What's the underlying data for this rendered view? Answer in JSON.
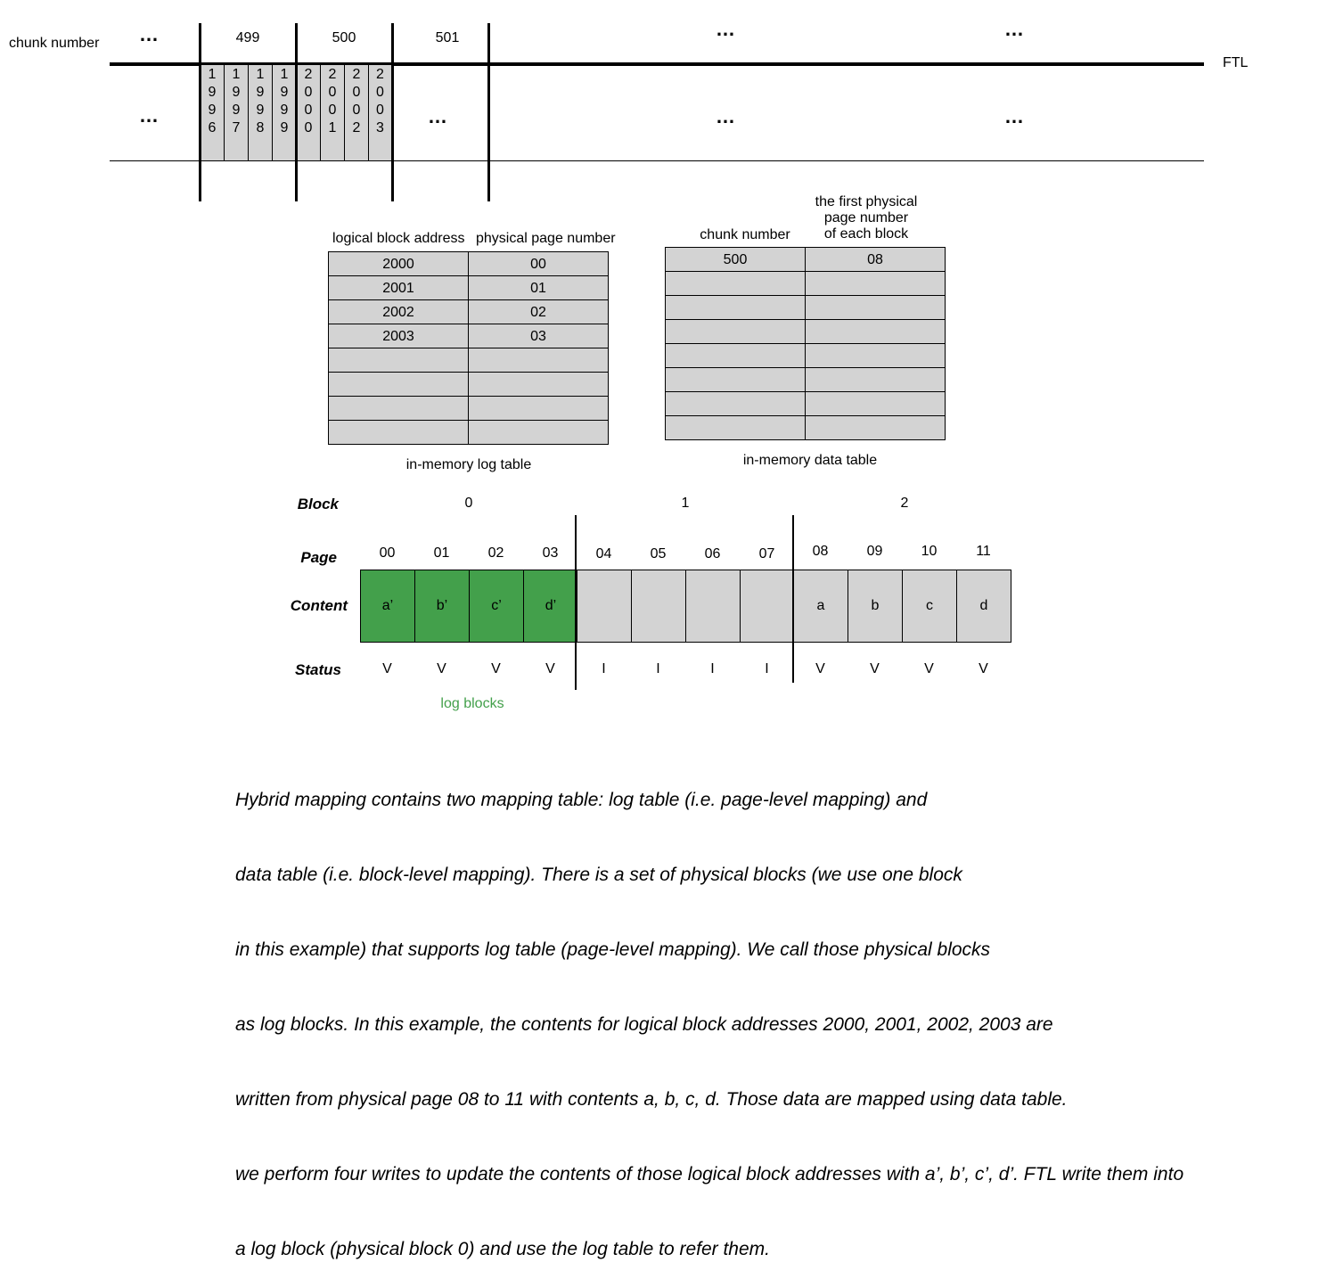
{
  "ftl": {
    "row_label": "chunk number",
    "ftl_label": "FTL",
    "ellipsis": "…",
    "chunks": [
      "499",
      "500",
      "501"
    ],
    "blocks_499": [
      "1\n9\n9\n6",
      "1\n9\n9\n7",
      "1\n9\n9\n8",
      "1\n9\n9\n9"
    ],
    "blocks_500": [
      "2\n0\n0\n0",
      "2\n0\n0\n1",
      "2\n0\n0\n2",
      "2\n0\n0\n3"
    ]
  },
  "log_table": {
    "col1": "logical block address",
    "col2": "physical page number",
    "rows": [
      [
        "2000",
        "00"
      ],
      [
        "2001",
        "01"
      ],
      [
        "2002",
        "02"
      ],
      [
        "2003",
        "03"
      ],
      [
        "",
        ""
      ],
      [
        "",
        ""
      ],
      [
        "",
        ""
      ],
      [
        "",
        ""
      ]
    ],
    "caption": "in-memory log table"
  },
  "data_table": {
    "col1": "chunk number",
    "col2_line1": "the first physical",
    "col2_line2": "page number",
    "col2_line3": "of each block",
    "rows": [
      [
        "500",
        "08"
      ],
      [
        "",
        ""
      ],
      [
        "",
        ""
      ],
      [
        "",
        ""
      ],
      [
        "",
        ""
      ],
      [
        "",
        ""
      ],
      [
        "",
        ""
      ],
      [
        "",
        ""
      ]
    ],
    "caption": "in-memory data table"
  },
  "flash": {
    "labels": {
      "block": "Block",
      "page": "Page",
      "content": "Content",
      "status": "Status"
    },
    "blocks": [
      "0",
      "1",
      "2"
    ],
    "pages": [
      "00",
      "01",
      "02",
      "03",
      "04",
      "05",
      "06",
      "07",
      "08",
      "09",
      "10",
      "11"
    ],
    "contents": [
      "a’",
      "b’",
      "c’",
      "d’",
      "",
      "",
      "",
      "",
      "a",
      "b",
      "c",
      "d"
    ],
    "statuses": [
      "V",
      "V",
      "V",
      "V",
      "I",
      "I",
      "I",
      "I",
      "V",
      "V",
      "V",
      "V"
    ],
    "log_blocks_label": "log blocks",
    "log_color": "#43a04b",
    "empty_color": "#d3d3d3"
  },
  "description": {
    "lines": [
      "Hybrid mapping contains two mapping table: log table (i.e. page-level mapping) and",
      "data table (i.e. block-level mapping). There is a set of physical blocks (we use one block",
      "in this example) that supports log table (page-level mapping). We call those physical blocks",
      "as log blocks. In this example, the contents for logical block addresses 2000, 2001, 2002, 2003 are",
      "written from physical page 08 to 11 with contents a, b, c, d. Those data are mapped using data table.",
      "we perform four writes to update the contents of those logical block addresses with a’, b’, c’, d’. FTL write them into",
      "a log block (physical block 0) and use the log table to refer them."
    ]
  }
}
